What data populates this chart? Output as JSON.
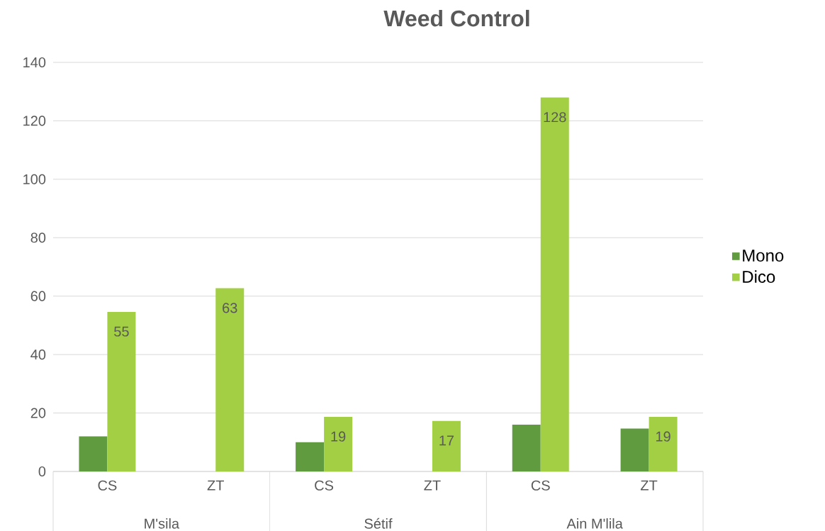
{
  "chart_data": {
    "type": "bar",
    "title": "Weed Control",
    "categories": [
      "CS",
      "ZT",
      "CS",
      "ZT",
      "CS",
      "ZT"
    ],
    "annotations": [
      "M'sila",
      "Sétif",
      "Ain M'lila"
    ],
    "series": [
      {
        "name": "Mono",
        "color": "#609b3f",
        "values": [
          12,
          0,
          10,
          0,
          16,
          14.7
        ]
      },
      {
        "name": "Dico",
        "color": "#a3cf45",
        "values": [
          54.6,
          62.7,
          18.7,
          17.3,
          128,
          18.7
        ],
        "value_labels": [
          "55",
          "63",
          "19",
          "17",
          "128",
          "19"
        ]
      }
    ],
    "ylim": [
      0,
      140
    ],
    "yticks": [
      0,
      20,
      40,
      60,
      80,
      100,
      120,
      140
    ],
    "grid": "y",
    "legend": "right"
  }
}
